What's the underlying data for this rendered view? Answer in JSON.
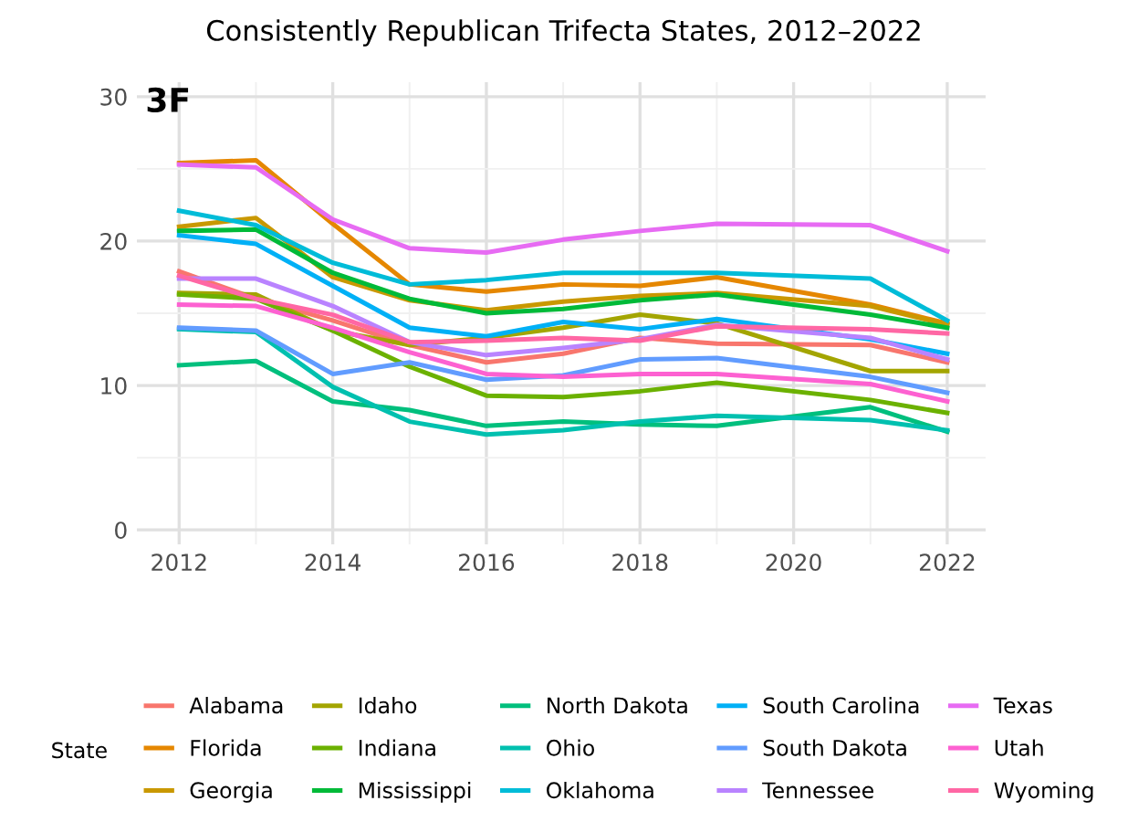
{
  "chart_data": {
    "type": "line",
    "title": "Consistently Republican Trifecta States, 2012–2022",
    "annotations": [
      "3F"
    ],
    "legend_title": "State",
    "legend": "bottom",
    "grid": true,
    "marker": "none",
    "line_style": "solid",
    "x": [
      2012,
      2013,
      2014,
      2015,
      2016,
      2017,
      2018,
      2019,
      2021,
      2022
    ],
    "xlim": [
      2011.45,
      2022.5
    ],
    "xticks": [
      2012,
      2014,
      2016,
      2018,
      2020,
      2022
    ],
    "ylim": [
      -1,
      31
    ],
    "yticks": [
      0,
      10,
      20,
      30
    ],
    "series": [
      {
        "name": "Alabama",
        "color": "#f8766d",
        "values": [
          17.9,
          16.0,
          14.5,
          12.8,
          11.6,
          12.2,
          13.3,
          12.9,
          12.8,
          11.6
        ]
      },
      {
        "name": "Florida",
        "color": "#e58700",
        "values": [
          25.4,
          25.6,
          21.2,
          17.0,
          16.5,
          17.0,
          16.9,
          17.5,
          15.6,
          14.3
        ]
      },
      {
        "name": "Georgia",
        "color": "#c99800",
        "values": [
          21.0,
          21.6,
          17.5,
          15.9,
          15.2,
          15.8,
          16.2,
          16.4,
          15.5,
          14.2
        ]
      },
      {
        "name": "Idaho",
        "color": "#a3a500",
        "values": [
          16.4,
          16.3,
          13.8,
          12.8,
          13.3,
          14.0,
          14.9,
          14.3,
          11.0,
          11.0
        ]
      },
      {
        "name": "Indiana",
        "color": "#6bb100",
        "values": [
          16.3,
          16.0,
          13.8,
          11.3,
          9.3,
          9.2,
          9.6,
          10.2,
          9.0,
          8.1
        ]
      },
      {
        "name": "Mississippi",
        "color": "#00ba38",
        "values": [
          20.7,
          20.8,
          17.8,
          16.0,
          15.0,
          15.3,
          15.9,
          16.3,
          14.9,
          14.0
        ]
      },
      {
        "name": "North Dakota",
        "color": "#00bf7d",
        "values": [
          11.4,
          11.7,
          8.9,
          8.3,
          7.2,
          7.5,
          7.3,
          7.2,
          8.5,
          6.8
        ]
      },
      {
        "name": "Ohio",
        "color": "#00c0af",
        "values": [
          13.9,
          13.7,
          9.9,
          7.5,
          6.6,
          6.9,
          7.5,
          7.9,
          7.6,
          6.9
        ]
      },
      {
        "name": "Oklahoma",
        "color": "#00bcd8",
        "values": [
          22.1,
          21.1,
          18.5,
          17.0,
          17.3,
          17.8,
          17.8,
          17.8,
          17.4,
          14.5
        ]
      },
      {
        "name": "South Carolina",
        "color": "#00b0f6",
        "values": [
          20.4,
          19.8,
          16.9,
          14.0,
          13.4,
          14.4,
          13.9,
          14.6,
          13.2,
          12.2
        ]
      },
      {
        "name": "South Dakota",
        "color": "#619cff",
        "values": [
          14.0,
          13.8,
          10.8,
          11.6,
          10.4,
          10.7,
          11.8,
          11.9,
          10.6,
          9.5
        ]
      },
      {
        "name": "Tennessee",
        "color": "#b983ff",
        "values": [
          17.4,
          17.4,
          15.5,
          13.0,
          12.1,
          12.6,
          13.2,
          14.2,
          13.3,
          11.8
        ]
      },
      {
        "name": "Texas",
        "color": "#e76bf3",
        "values": [
          25.3,
          25.1,
          21.5,
          19.5,
          19.2,
          20.1,
          20.7,
          21.2,
          21.1,
          19.3
        ]
      },
      {
        "name": "Utah",
        "color": "#fd61d1",
        "values": [
          15.6,
          15.5,
          14.0,
          12.3,
          10.8,
          10.6,
          10.8,
          10.8,
          10.1,
          8.9
        ]
      },
      {
        "name": "Wyoming",
        "color": "#ff67a4",
        "values": [
          17.6,
          16.0,
          14.9,
          13.0,
          13.1,
          13.3,
          13.1,
          14.1,
          13.9,
          13.6
        ]
      }
    ]
  }
}
